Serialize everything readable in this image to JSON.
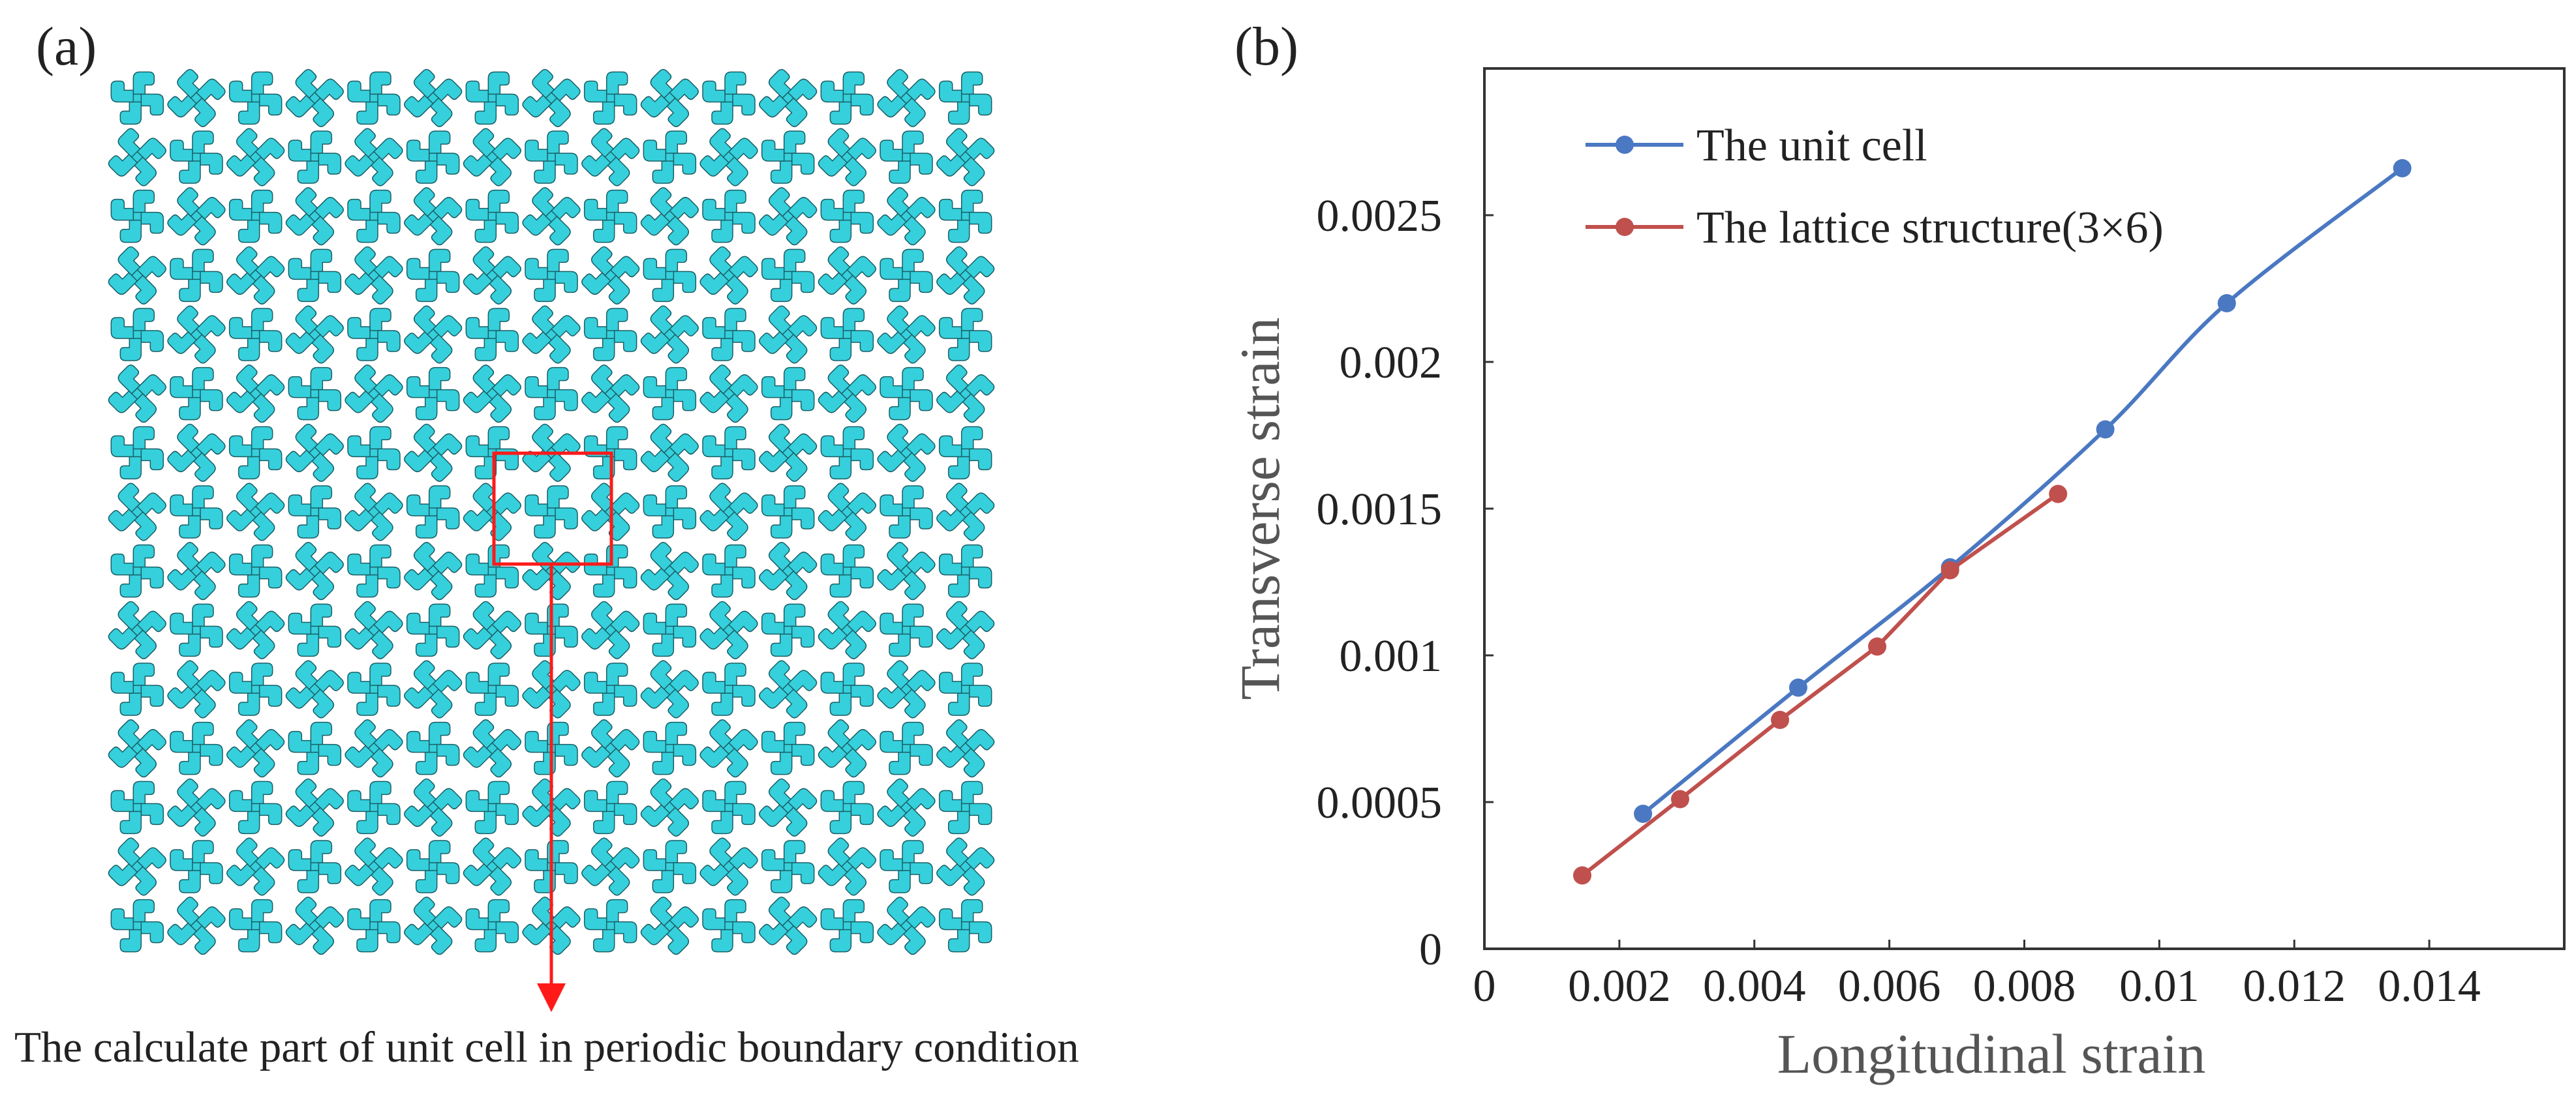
{
  "panel_a": {
    "label": "(a)",
    "caption": "The calculate part of  unit cell in periodic boundary condition",
    "lattice_grid": {
      "columns": 15,
      "rows": 15
    },
    "colors": {
      "lattice_fill": "#35d0dc",
      "lattice_stroke": "#1a5f66",
      "highlight": "#ff1a1a"
    }
  },
  "panel_b": {
    "label": "(b)"
  },
  "chart_data": {
    "type": "line",
    "title": "",
    "xlabel": "Longitudinal strain",
    "ylabel": "Transverse strain",
    "xlim": [
      0,
      0.016
    ],
    "ylim": [
      0,
      0.003
    ],
    "x_ticks": [
      {
        "value": 0,
        "label": "0"
      },
      {
        "value": 0.002,
        "label": "0.002"
      },
      {
        "value": 0.004,
        "label": "0.004"
      },
      {
        "value": 0.006,
        "label": "0.006"
      },
      {
        "value": 0.008,
        "label": "0.008"
      },
      {
        "value": 0.01,
        "label": "0.01"
      },
      {
        "value": 0.012,
        "label": "0.012"
      },
      {
        "value": 0.014,
        "label": "0.014"
      }
    ],
    "y_ticks": [
      {
        "value": 0,
        "label": "0"
      },
      {
        "value": 0.0005,
        "label": "0.0005"
      },
      {
        "value": 0.001,
        "label": "0.001"
      },
      {
        "value": 0.0015,
        "label": "0.0015"
      },
      {
        "value": 0.002,
        "label": "0.002"
      },
      {
        "value": 0.0025,
        "label": "0.0025"
      }
    ],
    "grid": false,
    "legend_position": "top-left",
    "series": [
      {
        "name": "The unit cell",
        "color": "#4a78c2",
        "smooth": true,
        "x": [
          0.00235,
          0.00465,
          0.0069,
          0.0092,
          0.011,
          0.0136
        ],
        "y": [
          0.00046,
          0.00089,
          0.0013,
          0.00177,
          0.0022,
          0.00266
        ]
      },
      {
        "name": "The lattice structure(3×6)",
        "color": "#c0504d",
        "smooth": false,
        "x": [
          0.00145,
          0.0029,
          0.00438,
          0.00582,
          0.0069,
          0.0085
        ],
        "y": [
          0.00025,
          0.00051,
          0.00078,
          0.00103,
          0.00129,
          0.00155
        ]
      }
    ]
  }
}
